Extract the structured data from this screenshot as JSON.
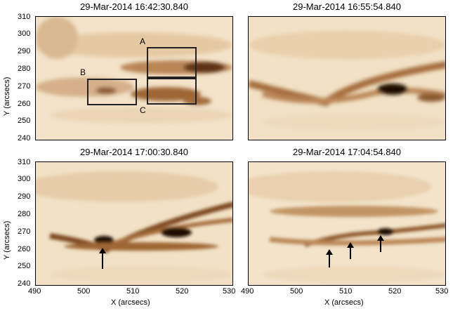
{
  "panels": [
    {
      "title": "29-Mar-2014 16:42:30.840"
    },
    {
      "title": "29-Mar-2014 16:55:54.840"
    },
    {
      "title": "29-Mar-2014 17:00:30.840"
    },
    {
      "title": "29-Mar-2014 17:04:54.840"
    }
  ],
  "axes": {
    "xlabel": "X (arcsecs)",
    "ylabel": "Y (arcsecs)",
    "xticks": [
      "490",
      "500",
      "510",
      "520",
      "530"
    ],
    "yticks": [
      "310",
      "300",
      "290",
      "280",
      "270",
      "260",
      "250",
      "240"
    ]
  },
  "box_labels": {
    "a": "A",
    "b": "B",
    "c": "C"
  },
  "colors": {
    "light": "#f6ead6",
    "mid": "#c9a07a",
    "dark": "#3b1e08"
  }
}
